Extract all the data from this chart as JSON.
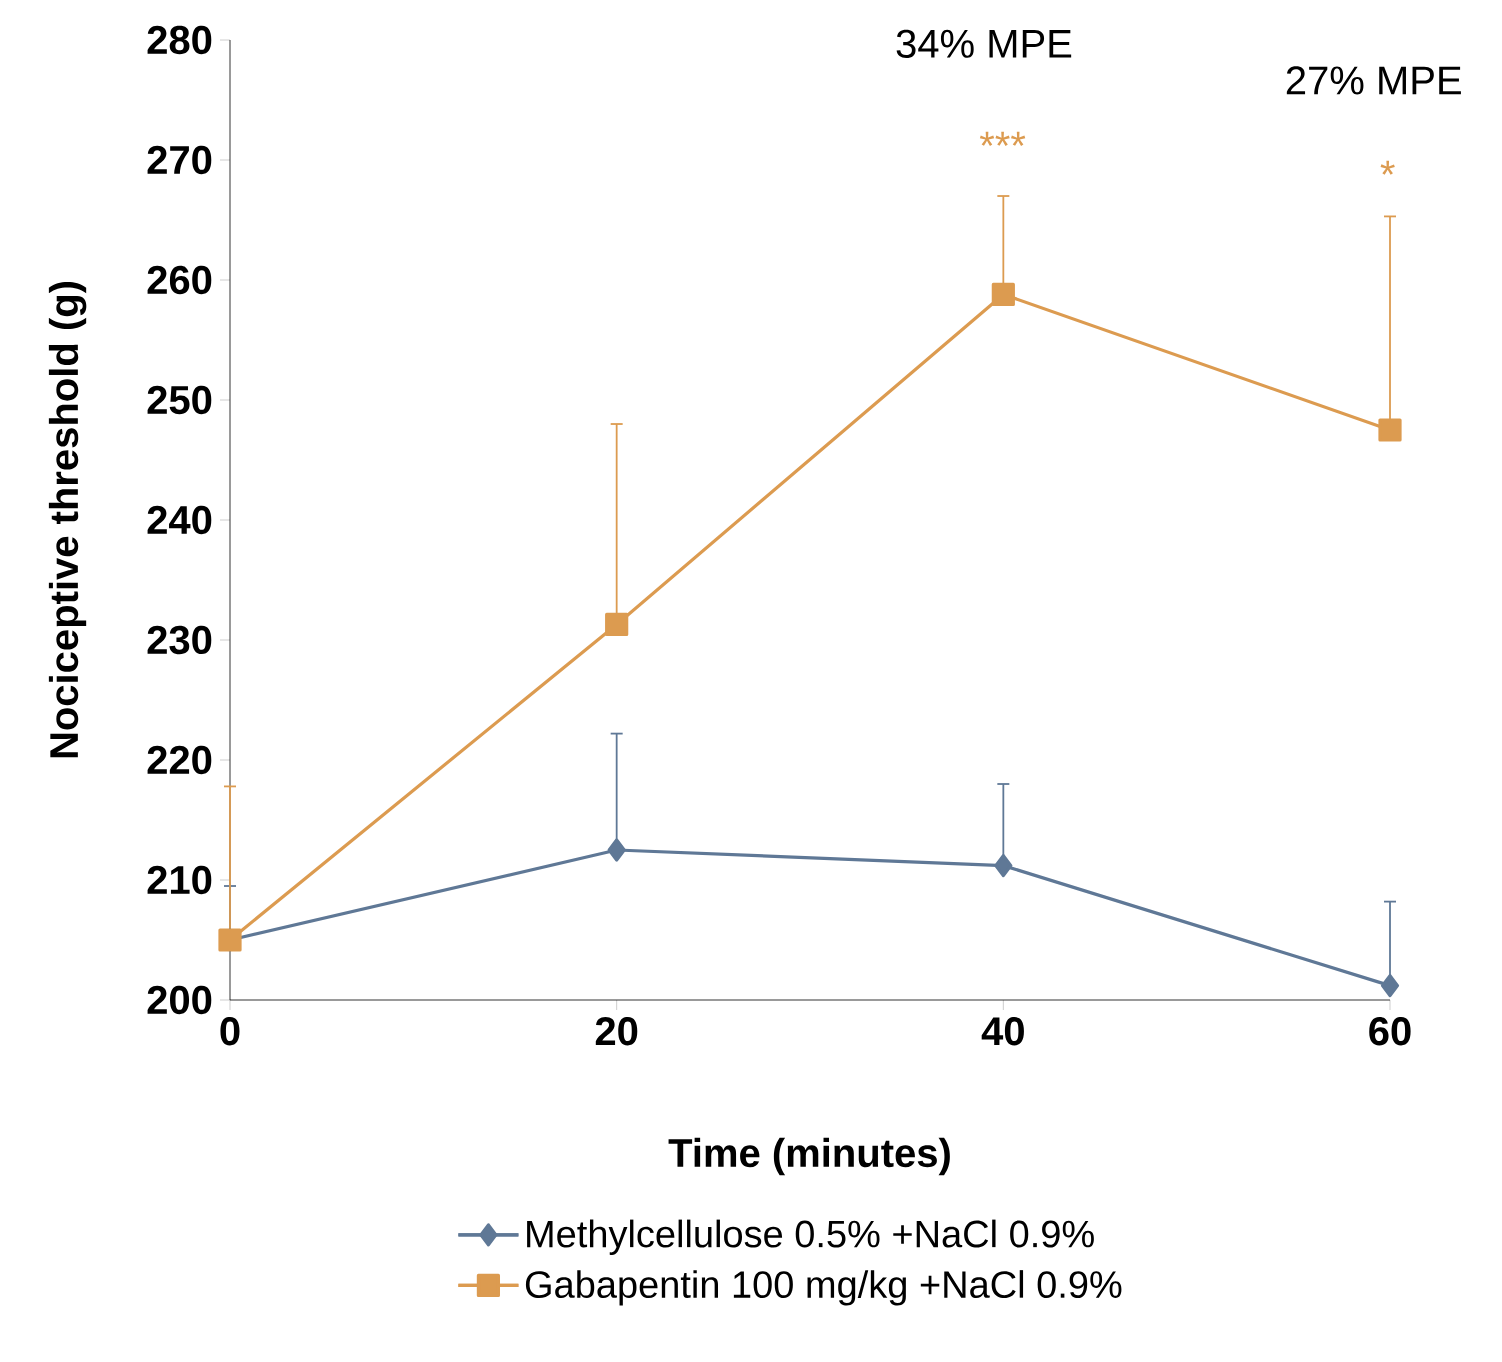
{
  "chart_data": {
    "type": "line",
    "xlabel": "Time (minutes)",
    "ylabel": "Nociceptive threshold (g)",
    "x": [
      0,
      20,
      40,
      60
    ],
    "xlim": [
      0,
      60
    ],
    "xticks": [
      0,
      20,
      40,
      60
    ],
    "ylim": [
      200,
      280
    ],
    "yticks": [
      200,
      210,
      220,
      230,
      240,
      250,
      260,
      270,
      280
    ],
    "series": [
      {
        "name": "Methylcellulose  0.5% +NaCl  0.9%",
        "color": "#5f7896",
        "marker": "diamond",
        "values": [
          205,
          212.5,
          211.2,
          201.2
        ],
        "errors": [
          [
            205,
            209.5
          ],
          [
            212.5,
            222.2
          ],
          [
            211.2,
            218
          ],
          [
            201.2,
            208.2
          ]
        ]
      },
      {
        "name": "Gabapentin 100 mg/kg +NaCl  0.9%",
        "color": "#dc9b50",
        "marker": "square",
        "values": [
          205,
          231.3,
          258.8,
          247.5
        ],
        "errors": [
          [
            205,
            217.8
          ],
          [
            231.3,
            248
          ],
          [
            258.8,
            267
          ],
          [
            247.5,
            265.3
          ]
        ]
      }
    ],
    "annotations": [
      "34% MPE",
      "27% MPE",
      "***",
      "*"
    ],
    "line_style": "solid",
    "grid": false,
    "legend": "bottom"
  }
}
